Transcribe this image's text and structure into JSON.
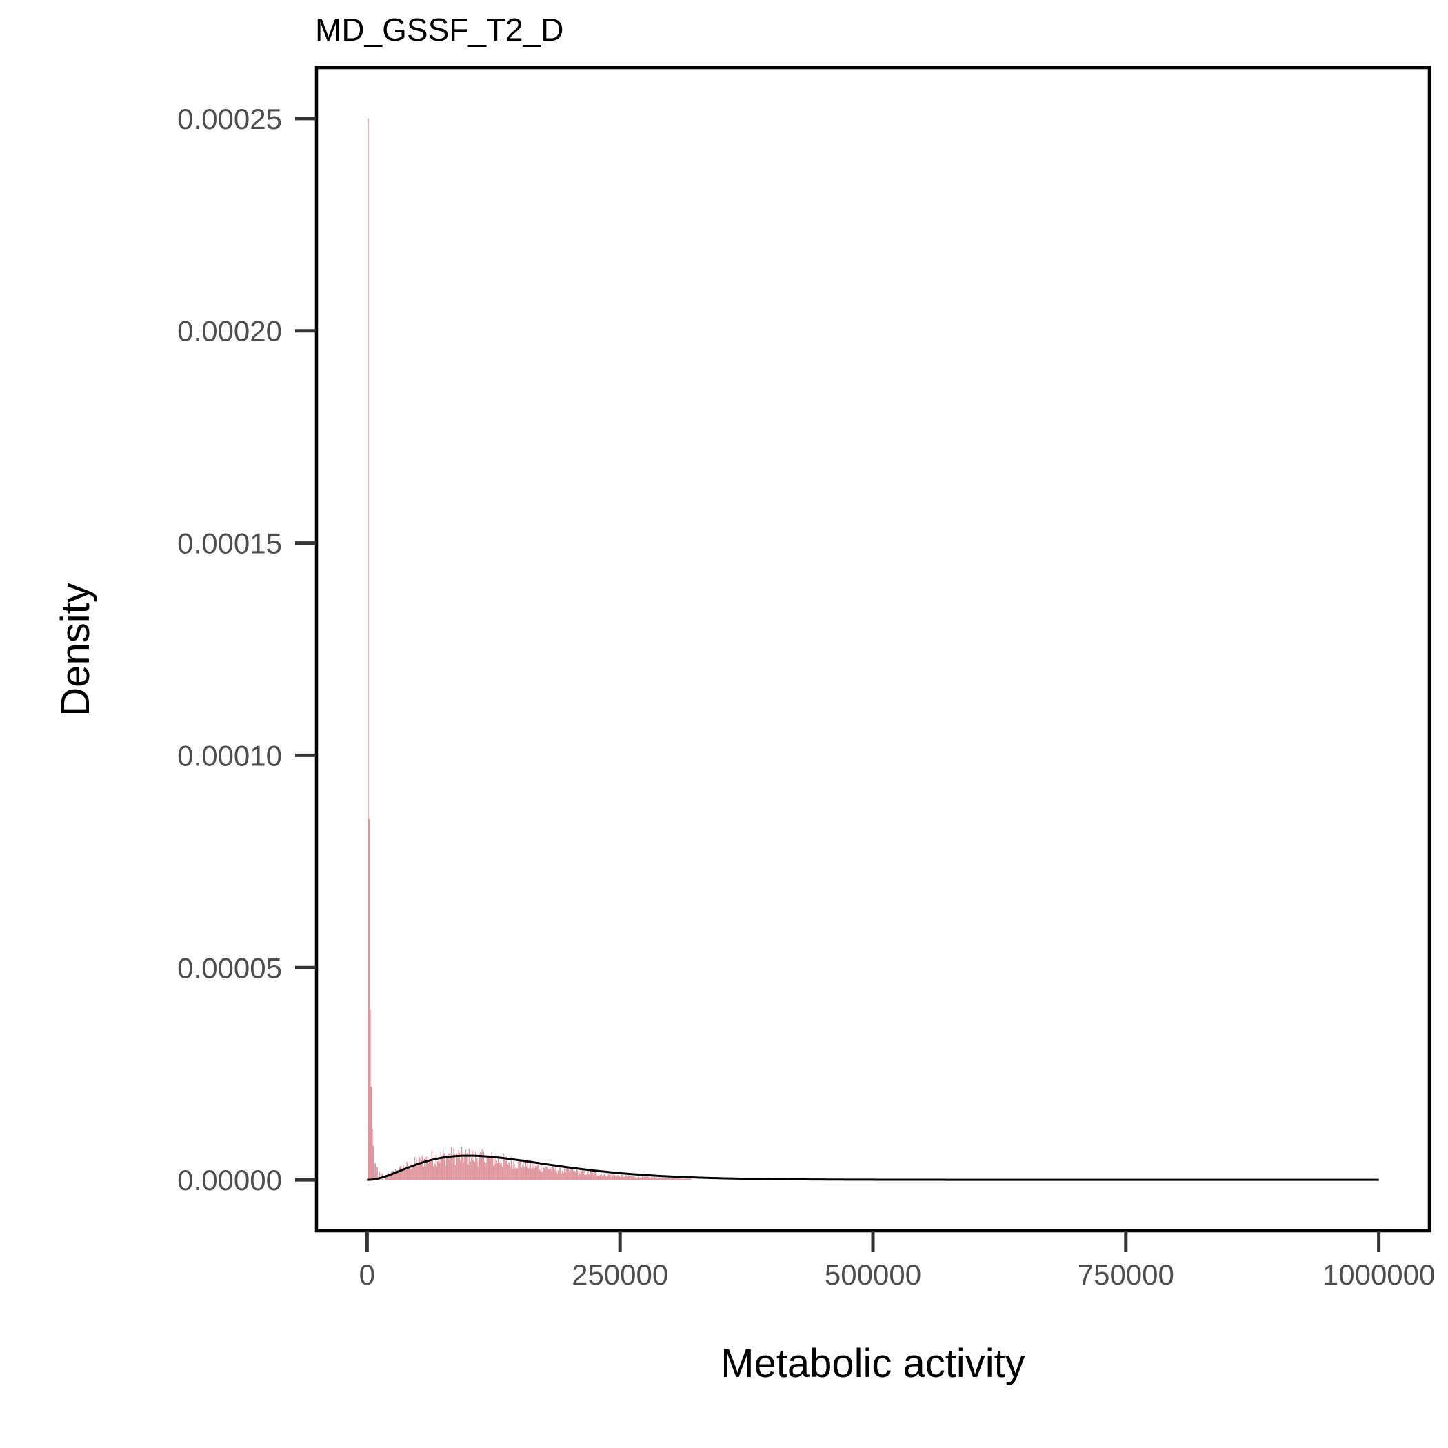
{
  "chart_data": {
    "type": "histogram",
    "title": "MD_GSSF_T2_D",
    "xlabel": "Metabolic activity",
    "ylabel": "Density",
    "xlim": [
      -50000,
      1050000
    ],
    "ylim": [
      -1.2e-05,
      0.000262
    ],
    "x_ticks": [
      0,
      250000,
      500000,
      750000,
      1000000
    ],
    "x_tick_labels": [
      "0",
      "250000",
      "500000",
      "750000",
      "1000000"
    ],
    "y_ticks": [
      0,
      5e-05,
      0.0001,
      0.00015,
      0.0002,
      0.00025
    ],
    "y_tick_labels": [
      "0.00000",
      "0.00005",
      "0.00010",
      "0.00015",
      "0.00020",
      "0.00025"
    ],
    "grid": false,
    "series": [
      {
        "kind": "histogram",
        "color": "#e0959d",
        "spike_bins": [
          {
            "x": 1000,
            "y": 0.00025
          },
          {
            "x": 2000,
            "y": 8.5e-05
          },
          {
            "x": 3000,
            "y": 4e-05
          },
          {
            "x": 4000,
            "y": 2.2e-05
          },
          {
            "x": 5000,
            "y": 1.2e-05
          },
          {
            "x": 6000,
            "y": 8e-06
          },
          {
            "x": 8000,
            "y": 4e-06
          },
          {
            "x": 10000,
            "y": 3e-06
          },
          {
            "x": 12000,
            "y": 2e-06
          },
          {
            "x": 15000,
            "y": 1.5e-06
          }
        ],
        "bulk": {
          "shape": "gamma-like",
          "mode": 88000,
          "peak_density": 5.6e-06,
          "extent": [
            18000,
            320000
          ]
        }
      },
      {
        "kind": "density-curve",
        "color": "#000000",
        "distribution": "gamma",
        "shape": 3.2,
        "scale": 45500,
        "x_range": [
          0,
          1000000
        ]
      }
    ]
  }
}
